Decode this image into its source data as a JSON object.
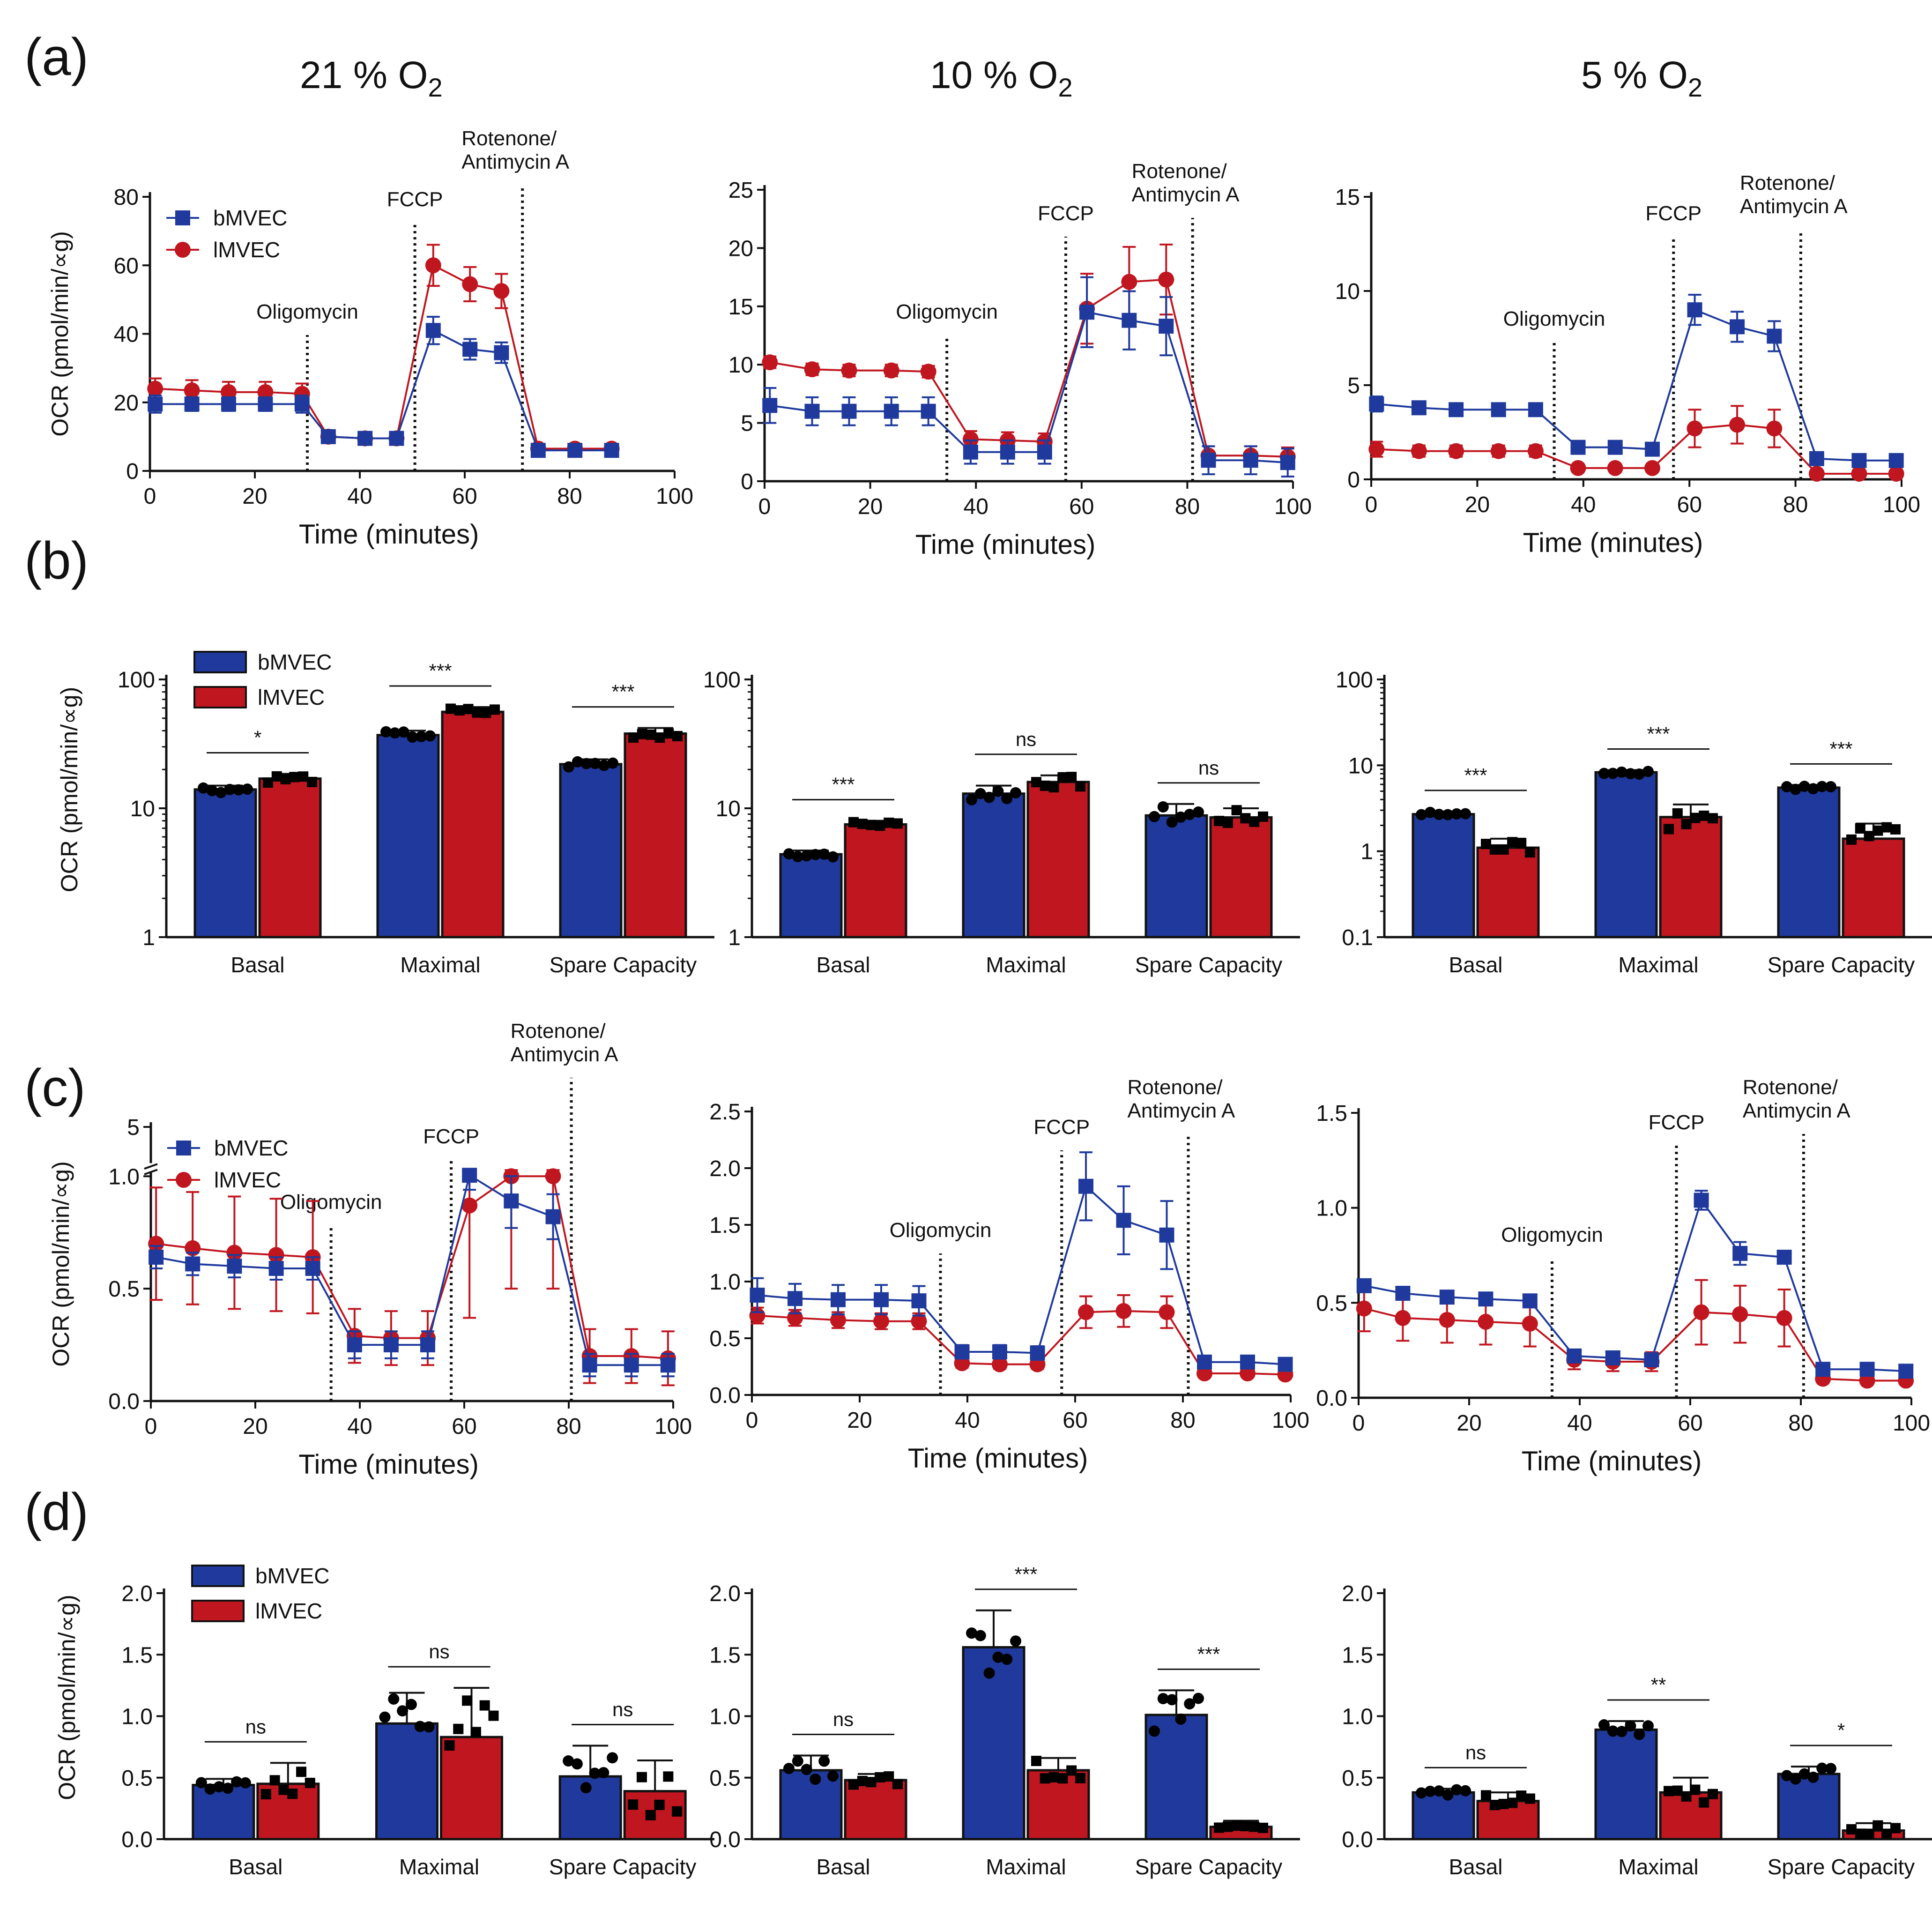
{
  "figure": {
    "panel_labels": [
      "(a)",
      "(b)",
      "(c)",
      "(d)"
    ],
    "column_titles": [
      {
        "main": "21 % O",
        "sub": "2"
      },
      {
        "main": "10 % O",
        "sub": "2"
      },
      {
        "main": "5 % O",
        "sub": "2"
      }
    ],
    "colors": {
      "bMVEC": "#1f3a9c",
      "lMVEC": "#c0161f",
      "axis": "#111111",
      "marker": "#000000"
    }
  },
  "chart_data": [
    {
      "id": "a1",
      "type": "line",
      "panel": "(a)",
      "title": "21 % O2",
      "xlabel": "Time (minutes)",
      "ylabel": "OCR (pmol/min/∝g)",
      "xlim": [
        0,
        100
      ],
      "ylim": [
        0,
        80
      ],
      "xticks": [
        "0",
        "20",
        "40",
        "60",
        "80",
        "100"
      ],
      "yticks": [
        "0",
        "20",
        "40",
        "60",
        "80"
      ],
      "yscale": "linear",
      "legend": {
        "position": "top-left",
        "entries": [
          "bMVEC",
          "lMVEC"
        ]
      },
      "x": [
        1,
        8,
        15,
        22,
        29,
        34,
        41,
        47,
        54,
        61,
        67,
        74,
        81,
        88
      ],
      "injections": [
        {
          "label": "Oligomycin",
          "x": 30
        },
        {
          "label": "FCCP",
          "x": 50.5
        },
        {
          "label": "Rotenone/\nAntimycin A",
          "x": 71
        }
      ],
      "series": [
        {
          "name": "bMVEC",
          "values": [
            19.5,
            19.5,
            19.5,
            19.5,
            19.5,
            10,
            9.5,
            9.5,
            41,
            35.5,
            34.5,
            6,
            6,
            6
          ],
          "errors": [
            2.5,
            2,
            2,
            2,
            2.5,
            1,
            1,
            1,
            4,
            3,
            3,
            1,
            1,
            1
          ]
        },
        {
          "name": "lMVEC",
          "values": [
            24,
            23.5,
            23,
            23,
            22.5,
            10,
            9.5,
            9.5,
            60,
            54.5,
            52.5,
            6.5,
            6.5,
            6.5
          ],
          "errors": [
            3,
            3,
            3,
            3,
            3,
            1,
            1,
            1,
            6,
            5,
            5,
            1,
            1,
            1
          ]
        }
      ]
    },
    {
      "id": "a2",
      "type": "line",
      "panel": "(a)",
      "title": "10 % O2",
      "xlabel": "Time (minutes)",
      "ylabel": "",
      "xlim": [
        0,
        100
      ],
      "ylim": [
        0,
        25
      ],
      "xticks": [
        "0",
        "20",
        "40",
        "60",
        "80",
        "100"
      ],
      "yticks": [
        "0",
        "5",
        "10",
        "15",
        "20",
        "25"
      ],
      "yscale": "linear",
      "x": [
        1,
        9,
        16,
        24,
        31,
        39,
        46,
        53,
        61,
        69,
        76,
        84,
        92,
        99
      ],
      "injections": [
        {
          "label": "Oligomycin",
          "x": 34.5
        },
        {
          "label": "FCCP",
          "x": 57
        },
        {
          "label": "Rotenone/\nAntimycin A",
          "x": 81
        }
      ],
      "series": [
        {
          "name": "bMVEC",
          "values": [
            6.5,
            6,
            6,
            6,
            6,
            2.5,
            2.5,
            2.5,
            14.5,
            13.8,
            13.3,
            1.8,
            1.8,
            1.6
          ],
          "errors": [
            1.5,
            1.2,
            1.2,
            1.2,
            1.2,
            1,
            1,
            1,
            3,
            2.5,
            2.5,
            1.2,
            1.2,
            1.2
          ]
        },
        {
          "name": "lMVEC",
          "values": [
            10.2,
            9.6,
            9.5,
            9.5,
            9.4,
            3.6,
            3.5,
            3.4,
            14.8,
            17.1,
            17.3,
            2.2,
            2.2,
            2.1
          ],
          "errors": [
            0.5,
            0.5,
            0.5,
            0.5,
            0.5,
            0.7,
            0.7,
            0.7,
            3,
            3,
            3,
            0.8,
            0.8,
            0.8
          ]
        }
      ]
    },
    {
      "id": "a3",
      "type": "line",
      "panel": "(a)",
      "title": "5 % O2",
      "xlabel": "Time (minutes)",
      "ylabel": "",
      "xlim": [
        0,
        100
      ],
      "ylim": [
        0,
        15
      ],
      "xticks": [
        "0",
        "20",
        "40",
        "60",
        "80",
        "100"
      ],
      "yticks": [
        "0",
        "5",
        "10",
        "15"
      ],
      "yscale": "linear",
      "x": [
        1,
        9,
        16,
        24,
        31,
        39,
        46,
        53,
        61,
        69,
        76,
        84,
        92,
        99
      ],
      "injections": [
        {
          "label": "Oligomycin",
          "x": 34.5
        },
        {
          "label": "FCCP",
          "x": 57
        },
        {
          "label": "Rotenone/\nAntimycin A",
          "x": 81
        }
      ],
      "series": [
        {
          "name": "bMVEC",
          "values": [
            4,
            3.8,
            3.7,
            3.7,
            3.7,
            1.7,
            1.7,
            1.6,
            9,
            8.1,
            7.6,
            1.1,
            1,
            1
          ],
          "errors": [
            0.4,
            0.3,
            0.3,
            0.3,
            0.3,
            0.2,
            0.2,
            0.2,
            0.8,
            0.8,
            0.8,
            0.2,
            0.2,
            0.2
          ]
        },
        {
          "name": "lMVEC",
          "values": [
            1.6,
            1.5,
            1.5,
            1.5,
            1.5,
            0.6,
            0.6,
            0.6,
            2.7,
            2.9,
            2.7,
            0.3,
            0.3,
            0.3
          ],
          "errors": [
            0.4,
            0.3,
            0.3,
            0.3,
            0.3,
            0.1,
            0.1,
            0.1,
            1,
            1,
            1,
            0.1,
            0.1,
            0.1
          ]
        }
      ]
    },
    {
      "id": "b1",
      "type": "bar",
      "panel": "(b)",
      "ylabel": "OCR (pmol/min/∝g)",
      "yscale": "log",
      "ylim": [
        1,
        100
      ],
      "yticks": [
        "1",
        "10",
        "100"
      ],
      "categories": [
        "Basal",
        "Maximal",
        "Spare Capacity"
      ],
      "legend": {
        "position": "top-left",
        "entries": [
          "bMVEC",
          "lMVEC"
        ]
      },
      "series": [
        {
          "name": "bMVEC",
          "values": [
            14,
            37,
            22
          ],
          "errors": [
            1,
            3,
            2
          ]
        },
        {
          "name": "lMVEC",
          "values": [
            17,
            56,
            38
          ],
          "errors": [
            1.5,
            5,
            4
          ]
        }
      ],
      "significance": [
        "*",
        "***",
        "***"
      ]
    },
    {
      "id": "b2",
      "type": "bar",
      "panel": "(b)",
      "ylabel": "",
      "yscale": "log",
      "ylim": [
        1,
        100
      ],
      "yticks": [
        "1",
        "10",
        "100"
      ],
      "categories": [
        "Basal",
        "Maximal",
        "Spare Capacity"
      ],
      "series": [
        {
          "name": "bMVEC",
          "values": [
            4.4,
            13,
            8.8
          ],
          "errors": [
            0.3,
            2,
            2
          ]
        },
        {
          "name": "lMVEC",
          "values": [
            7.5,
            16,
            8.5
          ],
          "errors": [
            0.5,
            2,
            1.5
          ]
        }
      ],
      "significance": [
        "***",
        "ns",
        "ns"
      ]
    },
    {
      "id": "b3",
      "type": "bar",
      "panel": "(b)",
      "ylabel": "",
      "yscale": "log",
      "ylim": [
        0.1,
        100
      ],
      "yticks": [
        "0.1",
        "1",
        "10",
        "100"
      ],
      "categories": [
        "Basal",
        "Maximal",
        "Spare Capacity"
      ],
      "series": [
        {
          "name": "bMVEC",
          "values": [
            2.7,
            8.3,
            5.5
          ],
          "errors": [
            0.2,
            0.5,
            0.4
          ]
        },
        {
          "name": "lMVEC",
          "values": [
            1.1,
            2.5,
            1.4
          ],
          "errors": [
            0.3,
            1,
            0.7
          ]
        }
      ],
      "significance": [
        "***",
        "***",
        "***"
      ]
    },
    {
      "id": "c1",
      "type": "line",
      "panel": "(c)",
      "xlabel": "Time (minutes)",
      "ylabel": "OCR (pmol/min/∝g)",
      "xlim": [
        0,
        100
      ],
      "ylim": [
        0,
        5
      ],
      "xticks": [
        "0",
        "20",
        "40",
        "60",
        "80",
        "100"
      ],
      "yticks": [
        "0.0",
        "0.5",
        "1.0",
        "5"
      ],
      "yscale": "broken",
      "legend": {
        "position": "top-left",
        "entries": [
          "bMVEC",
          "lMVEC"
        ]
      },
      "x": [
        1,
        8,
        16,
        24,
        31,
        39,
        46,
        53,
        61,
        69,
        77,
        84,
        92,
        99
      ],
      "injections": [
        {
          "label": "Oligomycin",
          "x": 34.5
        },
        {
          "label": "FCCP",
          "x": 57.5
        },
        {
          "label": "Rotenone/\nAntimycin A",
          "x": 80.5
        }
      ],
      "series": [
        {
          "name": "bMVEC",
          "values": [
            0.64,
            0.61,
            0.6,
            0.59,
            0.59,
            0.25,
            0.25,
            0.25,
            1.08,
            0.89,
            0.82,
            0.16,
            0.16,
            0.16
          ],
          "errors": [
            0.05,
            0.05,
            0.05,
            0.05,
            0.05,
            0.06,
            0.06,
            0.06,
            0.14,
            0.12,
            0.1,
            0.05,
            0.05,
            0.05
          ]
        },
        {
          "name": "lMVEC",
          "values": [
            0.7,
            0.68,
            0.66,
            0.65,
            0.64,
            0.29,
            0.28,
            0.28,
            0.87,
            1.0,
            1.0,
            0.2,
            0.2,
            0.19
          ],
          "errors": [
            0.25,
            0.25,
            0.25,
            0.25,
            0.25,
            0.12,
            0.12,
            0.12,
            0.5,
            0.5,
            0.5,
            0.12,
            0.12,
            0.12
          ]
        }
      ]
    },
    {
      "id": "c2",
      "type": "line",
      "panel": "(c)",
      "xlabel": "Time (minutes)",
      "ylabel": "",
      "xlim": [
        0,
        100
      ],
      "ylim": [
        0,
        2.5
      ],
      "xticks": [
        "0",
        "20",
        "40",
        "60",
        "80",
        "100"
      ],
      "yticks": [
        "0.0",
        "0.5",
        "1.0",
        "1.5",
        "2.0",
        "2.5"
      ],
      "yscale": "linear",
      "x": [
        1,
        8,
        16,
        24,
        31,
        39,
        46,
        53,
        62,
        69,
        77,
        84,
        92,
        99
      ],
      "injections": [
        {
          "label": "Oligomycin",
          "x": 35
        },
        {
          "label": "FCCP",
          "x": 57.5
        },
        {
          "label": "Rotenone/\nAntimycin A",
          "x": 81
        }
      ],
      "series": [
        {
          "name": "bMVEC",
          "values": [
            0.88,
            0.85,
            0.84,
            0.84,
            0.83,
            0.38,
            0.38,
            0.37,
            1.84,
            1.54,
            1.41,
            0.29,
            0.29,
            0.27
          ],
          "errors": [
            0.15,
            0.13,
            0.13,
            0.13,
            0.13,
            0.06,
            0.06,
            0.06,
            0.3,
            0.3,
            0.3,
            0.05,
            0.05,
            0.05
          ]
        },
        {
          "name": "lMVEC",
          "values": [
            0.7,
            0.68,
            0.66,
            0.65,
            0.65,
            0.28,
            0.27,
            0.27,
            0.73,
            0.74,
            0.73,
            0.19,
            0.19,
            0.18
          ],
          "errors": [
            0.07,
            0.07,
            0.07,
            0.07,
            0.07,
            0.04,
            0.04,
            0.04,
            0.14,
            0.14,
            0.14,
            0.03,
            0.03,
            0.03
          ]
        }
      ]
    },
    {
      "id": "c3",
      "type": "line",
      "panel": "(c)",
      "xlabel": "Time (minutes)",
      "ylabel": "",
      "xlim": [
        0,
        100
      ],
      "ylim": [
        0,
        1.5
      ],
      "xticks": [
        "0",
        "20",
        "40",
        "60",
        "80",
        "100"
      ],
      "yticks": [
        "0.0",
        "0.5",
        "1.0",
        "1.5"
      ],
      "yscale": "linear",
      "x": [
        1,
        8,
        16,
        23,
        31,
        39,
        46,
        53,
        62,
        69,
        77,
        84,
        92,
        99
      ],
      "injections": [
        {
          "label": "Oligomycin",
          "x": 35
        },
        {
          "label": "FCCP",
          "x": 57.5
        },
        {
          "label": "Rotenone/\nAntimycin A",
          "x": 80.5
        }
      ],
      "series": [
        {
          "name": "bMVEC",
          "values": [
            0.59,
            0.55,
            0.53,
            0.52,
            0.51,
            0.22,
            0.21,
            0.2,
            1.04,
            0.76,
            0.74,
            0.15,
            0.15,
            0.14
          ],
          "errors": [
            0.03,
            0.03,
            0.03,
            0.03,
            0.03,
            0.03,
            0.03,
            0.03,
            0.05,
            0.06,
            0.03,
            0.02,
            0.02,
            0.02
          ]
        },
        {
          "name": "lMVEC",
          "values": [
            0.47,
            0.42,
            0.41,
            0.4,
            0.39,
            0.2,
            0.19,
            0.19,
            0.45,
            0.44,
            0.42,
            0.1,
            0.09,
            0.09
          ],
          "errors": [
            0.12,
            0.12,
            0.12,
            0.12,
            0.12,
            0.05,
            0.05,
            0.05,
            0.17,
            0.15,
            0.15,
            0.02,
            0.02,
            0.02
          ]
        }
      ]
    },
    {
      "id": "d1",
      "type": "bar",
      "panel": "(d)",
      "ylabel": "OCR (pmol/min/∝g)",
      "yscale": "linear",
      "ylim": [
        0,
        2.0
      ],
      "yticks": [
        "0.0",
        "0.5",
        "1.0",
        "1.5",
        "2.0"
      ],
      "categories": [
        "Basal",
        "Maximal",
        "Spare Capacity"
      ],
      "legend": {
        "position": "top-left",
        "entries": [
          "bMVEC",
          "lMVEC"
        ]
      },
      "series": [
        {
          "name": "bMVEC",
          "values": [
            0.44,
            0.94,
            0.51
          ],
          "errors": [
            0.05,
            0.25,
            0.25
          ]
        },
        {
          "name": "lMVEC",
          "values": [
            0.45,
            0.83,
            0.39
          ],
          "errors": [
            0.17,
            0.4,
            0.25
          ]
        }
      ],
      "significance": [
        "ns",
        "ns",
        "ns"
      ]
    },
    {
      "id": "d2",
      "type": "bar",
      "panel": "(d)",
      "ylabel": "",
      "yscale": "linear",
      "ylim": [
        0,
        2.0
      ],
      "yticks": [
        "0.0",
        "0.5",
        "1.0",
        "1.5",
        "2.0"
      ],
      "categories": [
        "Basal",
        "Maximal",
        "Spare Capacity"
      ],
      "series": [
        {
          "name": "bMVEC",
          "values": [
            0.56,
            1.56,
            1.01
          ],
          "errors": [
            0.12,
            0.3,
            0.2
          ]
        },
        {
          "name": "lMVEC",
          "values": [
            0.48,
            0.56,
            0.1
          ],
          "errors": [
            0.05,
            0.1,
            0.05
          ]
        }
      ],
      "significance": [
        "ns",
        "***",
        "***"
      ]
    },
    {
      "id": "d3",
      "type": "bar",
      "panel": "(d)",
      "ylabel": "",
      "yscale": "linear",
      "ylim": [
        0,
        2.0
      ],
      "yticks": [
        "0.0",
        "0.5",
        "1.0",
        "1.5",
        "2.0"
      ],
      "categories": [
        "Basal",
        "Maximal",
        "Spare Capacity"
      ],
      "series": [
        {
          "name": "bMVEC",
          "values": [
            0.38,
            0.89,
            0.53
          ],
          "errors": [
            0.03,
            0.07,
            0.06
          ]
        },
        {
          "name": "lMVEC",
          "values": [
            0.31,
            0.38,
            0.07
          ],
          "errors": [
            0.07,
            0.12,
            0.06
          ]
        }
      ],
      "significance": [
        "ns",
        "**",
        "*"
      ]
    }
  ]
}
